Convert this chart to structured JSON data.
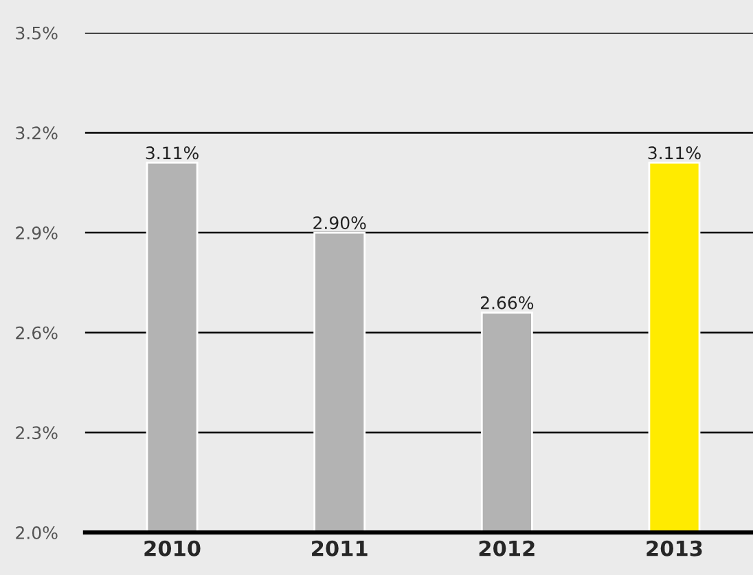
{
  "chart_data": {
    "type": "bar",
    "categories": [
      "2010",
      "2011",
      "2012",
      "2013"
    ],
    "values": [
      3.11,
      2.9,
      2.66,
      3.11
    ],
    "colors": [
      "#b3b3b3",
      "#b3b3b3",
      "#b3b3b3",
      "#ffeb00"
    ],
    "value_labels": [
      "3.11%",
      "2.90%",
      "2.66%",
      "3.11%"
    ],
    "ylim": [
      2.0,
      3.5
    ],
    "yticks": [
      {
        "value": 2.0,
        "label": "2.0%"
      },
      {
        "value": 2.3,
        "label": "2.3%"
      },
      {
        "value": 2.6,
        "label": "2.6%"
      },
      {
        "value": 2.9,
        "label": "2.9%"
      },
      {
        "value": 3.2,
        "label": "3.2%"
      },
      {
        "value": 3.5,
        "label": "3.5%"
      }
    ],
    "grid": "y"
  }
}
